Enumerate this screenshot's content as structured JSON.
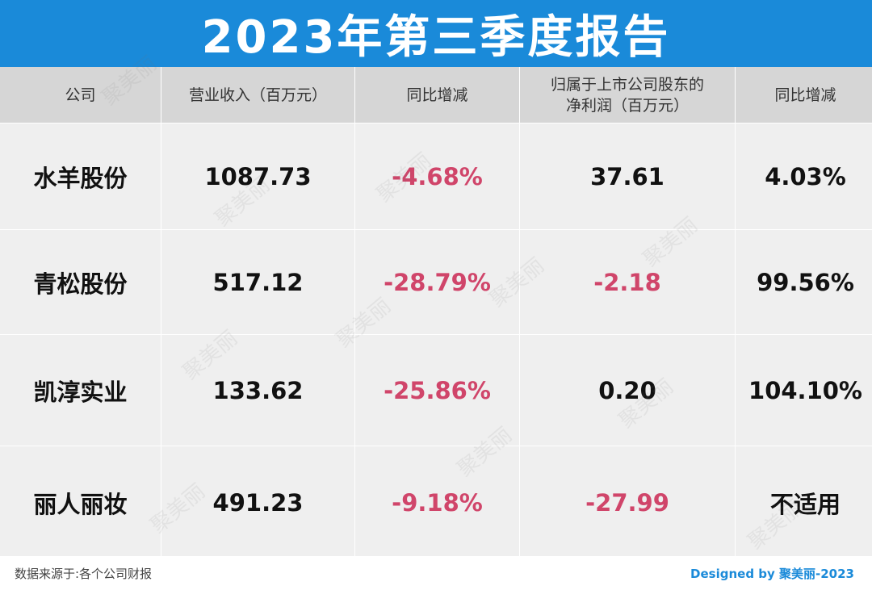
{
  "title": "2023年第三季度报告",
  "table": {
    "headers": [
      "公司",
      "营业收入（百万元）",
      "同比增减",
      "归属于上市公司股东的",
      "净利润（百万元）",
      "同比增减"
    ],
    "rows": [
      {
        "company": "水羊股份",
        "revenue": "1087.73",
        "revenue_yoy": "-4.68%",
        "profit": "37.61",
        "profit_yoy": "4.03%"
      },
      {
        "company": "青松股份",
        "revenue": "517.12",
        "revenue_yoy": "-28.79%",
        "profit": "-2.18",
        "profit_yoy": "99.56%"
      },
      {
        "company": "凯淳实业",
        "revenue": "133.62",
        "revenue_yoy": "-25.86%",
        "profit": "0.20",
        "profit_yoy": "104.10%"
      },
      {
        "company": "丽人丽妆",
        "revenue": "491.23",
        "revenue_yoy": "-9.18%",
        "profit": "-27.99",
        "profit_yoy": "不适用"
      }
    ]
  },
  "footer": {
    "source": "数据来源于:各个公司财报",
    "credit": "Designed by 聚美丽-2023"
  },
  "watermark": "聚美丽",
  "colors": {
    "title_bg": "#1a8ad9",
    "negative": "#d0456a",
    "header_bg": "#d6d6d6",
    "row_bg": "#efefef"
  }
}
